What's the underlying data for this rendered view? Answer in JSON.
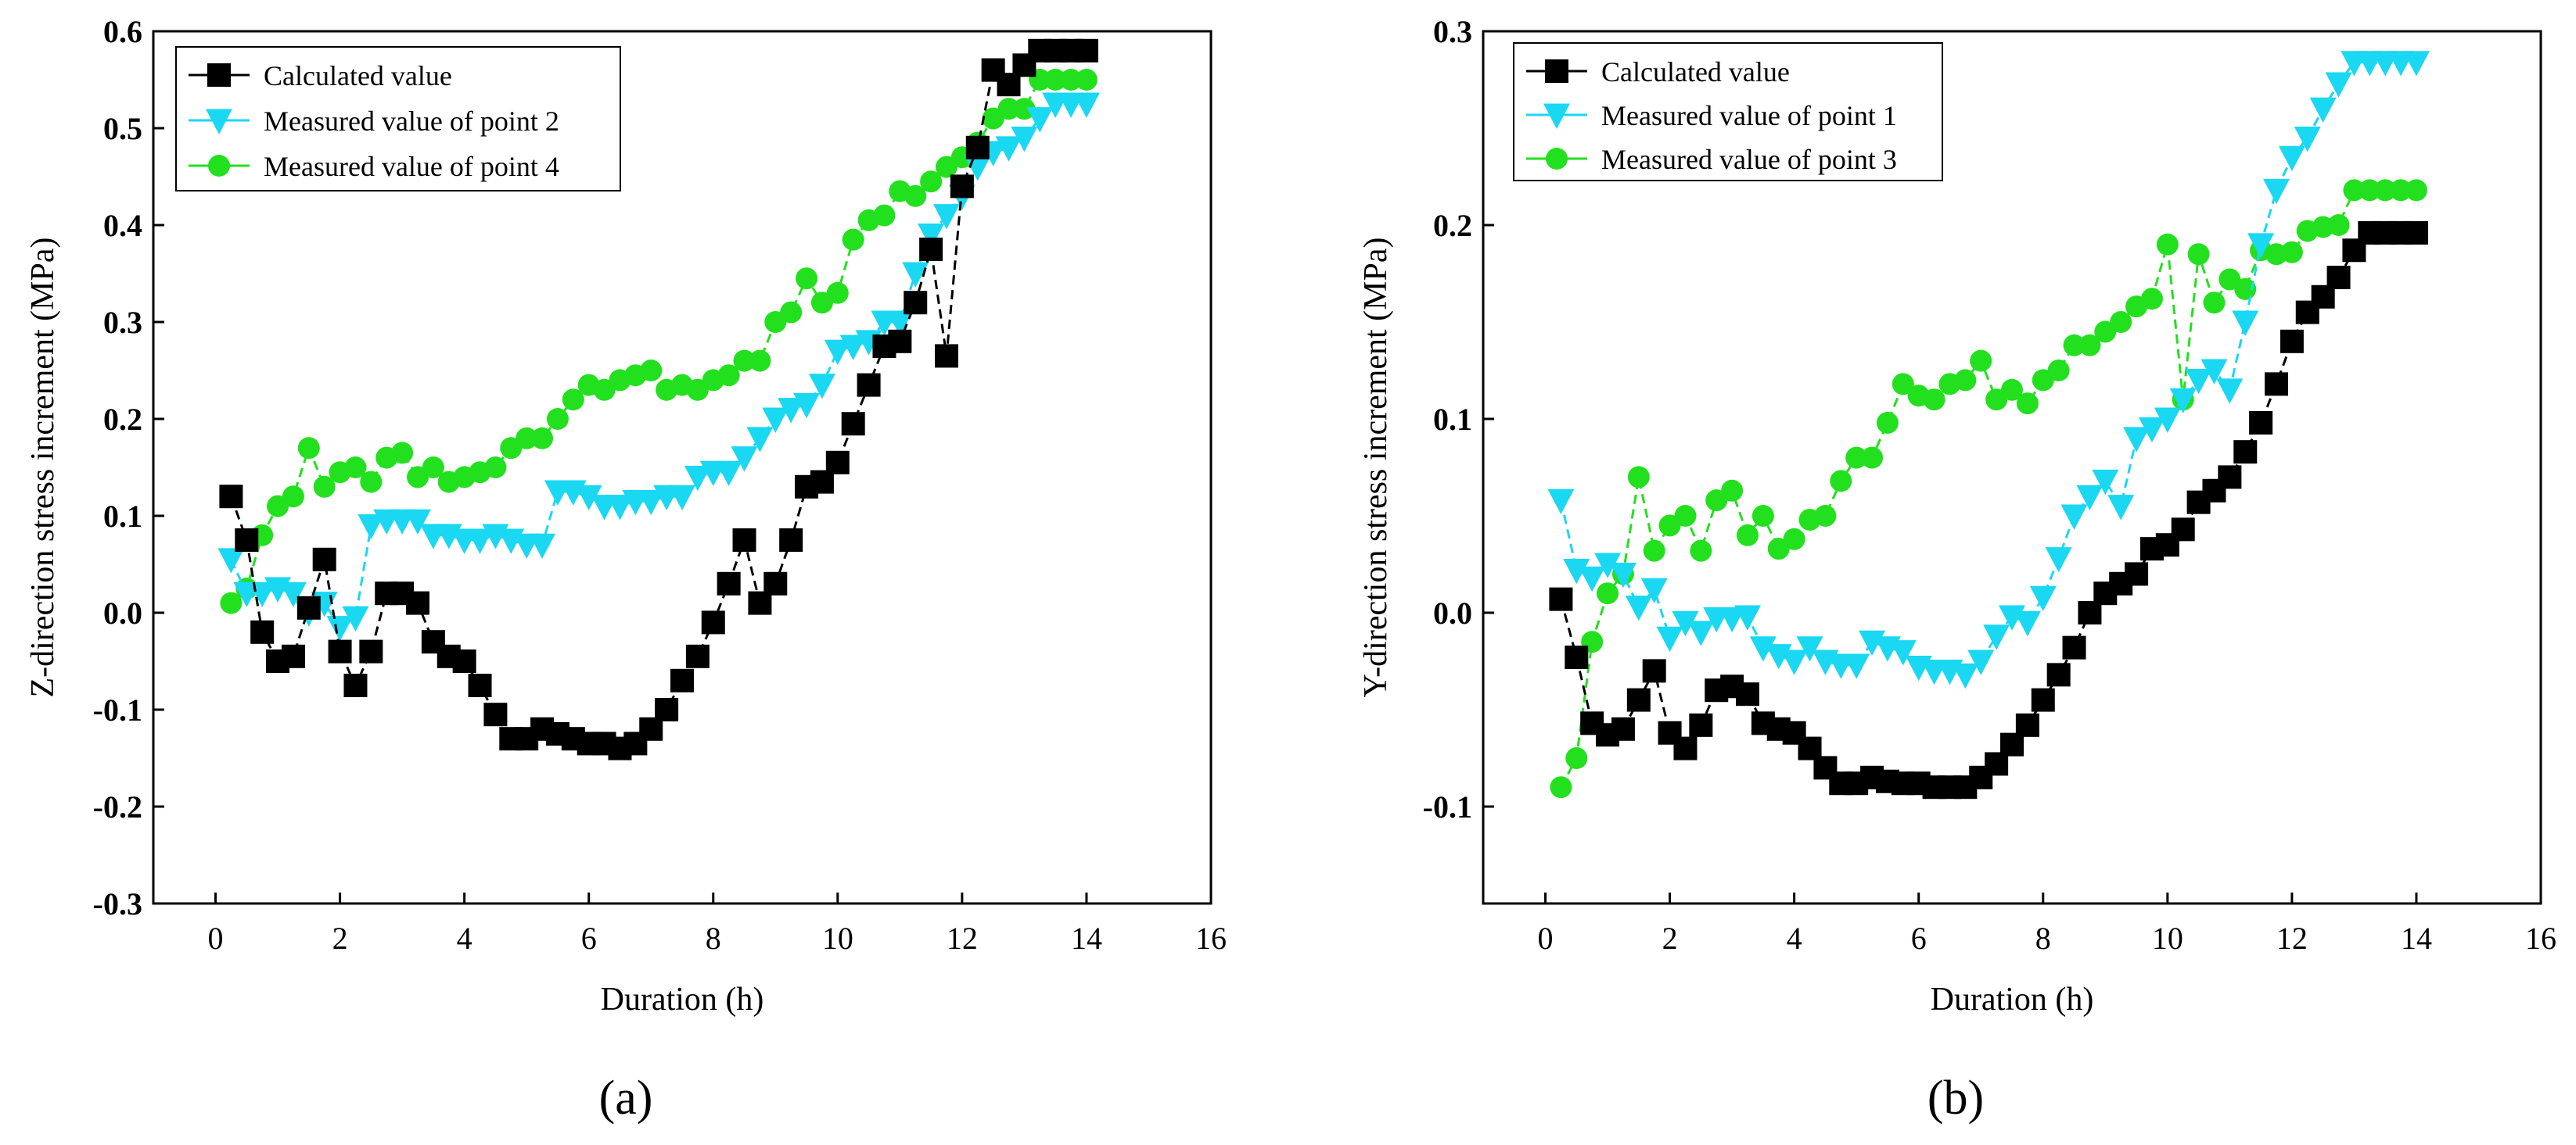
{
  "chart_data": [
    {
      "type": "line",
      "panel_label": "(a)",
      "xlabel": "Duration (h)",
      "ylabel": "Z-direction stress increment (MPa)",
      "xlim": [
        -1,
        16
      ],
      "ylim": [
        -0.3,
        0.6
      ],
      "xticks": [
        0,
        2,
        4,
        6,
        8,
        10,
        12,
        14,
        16
      ],
      "xtick_labels": [
        "0",
        "2",
        "4",
        "6",
        "8",
        "10",
        "12",
        "14",
        "16"
      ],
      "yticks": [
        -0.3,
        -0.2,
        -0.1,
        0.0,
        0.1,
        0.2,
        0.3,
        0.4,
        0.5,
        0.6
      ],
      "ytick_labels": [
        "-0.3",
        "-0.2",
        "-0.1",
        "0.0",
        "0.1",
        "0.2",
        "0.3",
        "0.4",
        "0.5",
        "0.6"
      ],
      "legend_position": "top-left",
      "series": [
        {
          "name": "Calculated value",
          "marker": "square",
          "color": "#000000",
          "x": [
            0.25,
            0.5,
            0.75,
            1.0,
            1.25,
            1.5,
            1.75,
            2.0,
            2.25,
            2.5,
            2.75,
            3.0,
            3.25,
            3.5,
            3.75,
            4.0,
            4.25,
            4.5,
            4.75,
            5.0,
            5.25,
            5.5,
            5.75,
            6.0,
            6.25,
            6.5,
            6.75,
            7.0,
            7.25,
            7.5,
            7.75,
            8.0,
            8.25,
            8.5,
            8.75,
            9.0,
            9.25,
            9.5,
            9.75,
            10.0,
            10.25,
            10.5,
            10.75,
            11.0,
            11.25,
            11.5,
            11.75,
            12.0,
            12.25,
            12.5,
            12.75,
            13.0,
            13.25,
            13.5,
            13.75,
            14.0
          ],
          "y": [
            0.12,
            0.075,
            -0.02,
            -0.05,
            -0.045,
            0.005,
            0.055,
            -0.04,
            -0.075,
            -0.04,
            0.02,
            0.02,
            0.01,
            -0.03,
            -0.045,
            -0.05,
            -0.075,
            -0.105,
            -0.13,
            -0.13,
            -0.12,
            -0.125,
            -0.13,
            -0.135,
            -0.135,
            -0.14,
            -0.135,
            -0.12,
            -0.1,
            -0.07,
            -0.045,
            -0.01,
            0.03,
            0.075,
            0.01,
            0.03,
            0.075,
            0.13,
            0.135,
            0.155,
            0.195,
            0.235,
            0.275,
            0.28,
            0.32,
            0.375,
            0.265,
            0.44,
            0.48,
            0.56,
            0.545,
            0.565,
            0.58,
            0.58,
            0.58,
            0.58
          ]
        },
        {
          "name": "Measured value of point 2",
          "marker": "triangle-down",
          "color": "#1ad7f2",
          "x": [
            0.25,
            0.5,
            0.75,
            1.0,
            1.25,
            1.5,
            1.75,
            2.0,
            2.25,
            2.5,
            2.75,
            3.0,
            3.25,
            3.5,
            3.75,
            4.0,
            4.25,
            4.5,
            4.75,
            5.0,
            5.25,
            5.5,
            5.75,
            6.0,
            6.25,
            6.5,
            6.75,
            7.0,
            7.25,
            7.5,
            7.75,
            8.0,
            8.25,
            8.5,
            8.75,
            9.0,
            9.25,
            9.5,
            9.75,
            10.0,
            10.25,
            10.5,
            10.75,
            11.0,
            11.25,
            11.5,
            11.75,
            12.0,
            12.25,
            12.5,
            12.75,
            13.0,
            13.25,
            13.5,
            13.75,
            14.0
          ],
          "y": [
            0.055,
            0.02,
            0.02,
            0.025,
            0.02,
            0.0,
            0.01,
            -0.015,
            -0.005,
            0.09,
            0.095,
            0.095,
            0.095,
            0.08,
            0.08,
            0.075,
            0.075,
            0.08,
            0.075,
            0.07,
            0.07,
            0.125,
            0.125,
            0.12,
            0.11,
            0.11,
            0.115,
            0.115,
            0.12,
            0.12,
            0.14,
            0.145,
            0.145,
            0.16,
            0.18,
            0.2,
            0.21,
            0.215,
            0.235,
            0.27,
            0.275,
            0.28,
            0.3,
            0.3,
            0.35,
            0.39,
            0.41,
            0.43,
            0.46,
            0.475,
            0.48,
            0.49,
            0.51,
            0.525,
            0.525,
            0.525
          ]
        },
        {
          "name": "Measured value of point 4",
          "marker": "circle",
          "color": "#22e01e",
          "x": [
            0.25,
            0.5,
            0.75,
            1.0,
            1.25,
            1.5,
            1.75,
            2.0,
            2.25,
            2.5,
            2.75,
            3.0,
            3.25,
            3.5,
            3.75,
            4.0,
            4.25,
            4.5,
            4.75,
            5.0,
            5.25,
            5.5,
            5.75,
            6.0,
            6.25,
            6.5,
            6.75,
            7.0,
            7.25,
            7.5,
            7.75,
            8.0,
            8.25,
            8.5,
            8.75,
            9.0,
            9.25,
            9.5,
            9.75,
            10.0,
            10.25,
            10.5,
            10.75,
            11.0,
            11.25,
            11.5,
            11.75,
            12.0,
            12.25,
            12.5,
            12.75,
            13.0,
            13.25,
            13.5,
            13.75,
            14.0
          ],
          "y": [
            0.01,
            0.025,
            0.08,
            0.11,
            0.12,
            0.17,
            0.13,
            0.145,
            0.15,
            0.135,
            0.16,
            0.165,
            0.14,
            0.15,
            0.135,
            0.14,
            0.145,
            0.15,
            0.17,
            0.18,
            0.18,
            0.2,
            0.22,
            0.235,
            0.23,
            0.24,
            0.245,
            0.25,
            0.23,
            0.235,
            0.23,
            0.24,
            0.245,
            0.26,
            0.26,
            0.3,
            0.31,
            0.345,
            0.32,
            0.33,
            0.385,
            0.405,
            0.41,
            0.435,
            0.43,
            0.445,
            0.46,
            0.47,
            0.485,
            0.51,
            0.52,
            0.52,
            0.55,
            0.55,
            0.55,
            0.55
          ]
        }
      ]
    },
    {
      "type": "line",
      "panel_label": "(b)",
      "xlabel": "Duration (h)",
      "ylabel": "Y-direction stress increment (MPa)",
      "xlim": [
        -1,
        16
      ],
      "ylim": [
        -0.15,
        0.3
      ],
      "xticks": [
        0,
        2,
        4,
        6,
        8,
        10,
        12,
        14,
        16
      ],
      "xtick_labels": [
        "0",
        "2",
        "4",
        "6",
        "8",
        "10",
        "12",
        "14",
        "16"
      ],
      "yticks": [
        -0.1,
        0.0,
        0.1,
        0.2,
        0.3
      ],
      "ytick_labels": [
        "-0.1",
        "0.0",
        "0.1",
        "0.2",
        "0.3"
      ],
      "legend_position": "top-left",
      "series": [
        {
          "name": "Calculated value",
          "marker": "square",
          "color": "#000000",
          "x": [
            0.25,
            0.5,
            0.75,
            1.0,
            1.25,
            1.5,
            1.75,
            2.0,
            2.25,
            2.5,
            2.75,
            3.0,
            3.25,
            3.5,
            3.75,
            4.0,
            4.25,
            4.5,
            4.75,
            5.0,
            5.25,
            5.5,
            5.75,
            6.0,
            6.25,
            6.5,
            6.75,
            7.0,
            7.25,
            7.5,
            7.75,
            8.0,
            8.25,
            8.5,
            8.75,
            9.0,
            9.25,
            9.5,
            9.75,
            10.0,
            10.25,
            10.5,
            10.75,
            11.0,
            11.25,
            11.5,
            11.75,
            12.0,
            12.25,
            12.5,
            12.75,
            13.0,
            13.25,
            13.5,
            13.75,
            14.0
          ],
          "y": [
            0.007,
            -0.023,
            -0.057,
            -0.063,
            -0.06,
            -0.045,
            -0.03,
            -0.062,
            -0.07,
            -0.058,
            -0.04,
            -0.038,
            -0.042,
            -0.057,
            -0.06,
            -0.062,
            -0.07,
            -0.08,
            -0.088,
            -0.088,
            -0.085,
            -0.087,
            -0.088,
            -0.088,
            -0.09,
            -0.09,
            -0.09,
            -0.085,
            -0.078,
            -0.068,
            -0.058,
            -0.045,
            -0.032,
            -0.018,
            0.0,
            0.01,
            0.015,
            0.02,
            0.033,
            0.035,
            0.043,
            0.057,
            0.063,
            0.07,
            0.083,
            0.098,
            0.118,
            0.14,
            0.155,
            0.163,
            0.173,
            0.187,
            0.196,
            0.196,
            0.196,
            0.196
          ]
        },
        {
          "name": "Measured value of point 1",
          "marker": "triangle-down",
          "color": "#1ad7f2",
          "x": [
            0.25,
            0.5,
            0.75,
            1.0,
            1.25,
            1.5,
            1.75,
            2.0,
            2.25,
            2.5,
            2.75,
            3.0,
            3.25,
            3.5,
            3.75,
            4.0,
            4.25,
            4.5,
            4.75,
            5.0,
            5.25,
            5.5,
            5.75,
            6.0,
            6.25,
            6.5,
            6.75,
            7.0,
            7.25,
            7.5,
            7.75,
            8.0,
            8.25,
            8.5,
            8.75,
            9.0,
            9.25,
            9.5,
            9.75,
            10.0,
            10.25,
            10.5,
            10.75,
            11.0,
            11.25,
            11.5,
            11.75,
            12.0,
            12.25,
            12.5,
            12.75,
            13.0,
            13.25,
            13.5,
            13.75,
            14.0
          ],
          "y": [
            0.058,
            0.022,
            0.018,
            0.025,
            0.02,
            0.003,
            0.012,
            -0.013,
            -0.005,
            -0.01,
            -0.003,
            -0.003,
            -0.002,
            -0.018,
            -0.022,
            -0.025,
            -0.018,
            -0.025,
            -0.027,
            -0.027,
            -0.015,
            -0.018,
            -0.02,
            -0.028,
            -0.03,
            -0.03,
            -0.032,
            -0.025,
            -0.012,
            -0.002,
            -0.005,
            0.008,
            0.028,
            0.05,
            0.06,
            0.068,
            0.055,
            0.09,
            0.095,
            0.1,
            0.11,
            0.12,
            0.125,
            0.115,
            0.15,
            0.19,
            0.218,
            0.235,
            0.245,
            0.26,
            0.273,
            0.284,
            0.284,
            0.284,
            0.284,
            0.284
          ]
        },
        {
          "name": "Measured value of point 3",
          "marker": "circle",
          "color": "#22e01e",
          "x": [
            0.25,
            0.5,
            0.75,
            1.0,
            1.25,
            1.5,
            1.75,
            2.0,
            2.25,
            2.5,
            2.75,
            3.0,
            3.25,
            3.5,
            3.75,
            4.0,
            4.25,
            4.5,
            4.75,
            5.0,
            5.25,
            5.5,
            5.75,
            6.0,
            6.25,
            6.5,
            6.75,
            7.0,
            7.25,
            7.5,
            7.75,
            8.0,
            8.25,
            8.5,
            8.75,
            9.0,
            9.25,
            9.5,
            9.75,
            10.0,
            10.25,
            10.5,
            10.75,
            11.0,
            11.25,
            11.5,
            11.75,
            12.0,
            12.25,
            12.5,
            12.75,
            13.0,
            13.25,
            13.5,
            13.75,
            14.0
          ],
          "y": [
            -0.09,
            -0.075,
            -0.015,
            0.01,
            0.02,
            0.07,
            0.032,
            0.045,
            0.05,
            0.032,
            0.058,
            0.063,
            0.04,
            0.05,
            0.033,
            0.038,
            0.048,
            0.05,
            0.068,
            0.08,
            0.08,
            0.098,
            0.118,
            0.112,
            0.11,
            0.118,
            0.12,
            0.13,
            0.11,
            0.115,
            0.108,
            0.12,
            0.125,
            0.138,
            0.138,
            0.145,
            0.15,
            0.158,
            0.162,
            0.19,
            0.11,
            0.185,
            0.16,
            0.172,
            0.167,
            0.187,
            0.185,
            0.186,
            0.197,
            0.199,
            0.2,
            0.218,
            0.218,
            0.218,
            0.218,
            0.218
          ]
        }
      ]
    }
  ]
}
